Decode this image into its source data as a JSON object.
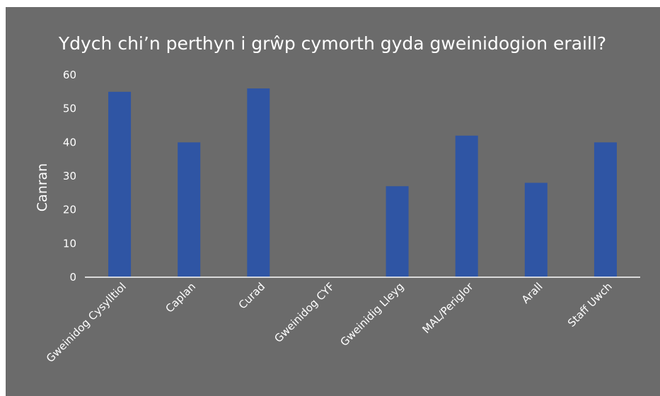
{
  "colors": {
    "background": "#6b6b6b",
    "bar": "#2f55a4",
    "text": "#ffffff",
    "axis": "#ffffff"
  },
  "chart_data": {
    "type": "bar",
    "title": "Ydych chi’n perthyn i grŵp cymorth gyda gweinidogion eraill?",
    "xlabel": "",
    "ylabel": "Canran",
    "ylim": [
      0,
      60
    ],
    "yticks": [
      "0",
      "10",
      "20",
      "30",
      "40",
      "50",
      "60"
    ],
    "grid": false,
    "legend": "none",
    "categories": [
      "Gweinidog Cysylltiol",
      "Caplan",
      "Curad",
      "Gweinidog CYF",
      "Gweinidig Lleyg",
      "MAL/Periglor",
      "Arall",
      "Staff Uwch"
    ],
    "values": [
      55,
      40,
      56,
      0,
      27,
      42,
      28,
      40
    ]
  }
}
